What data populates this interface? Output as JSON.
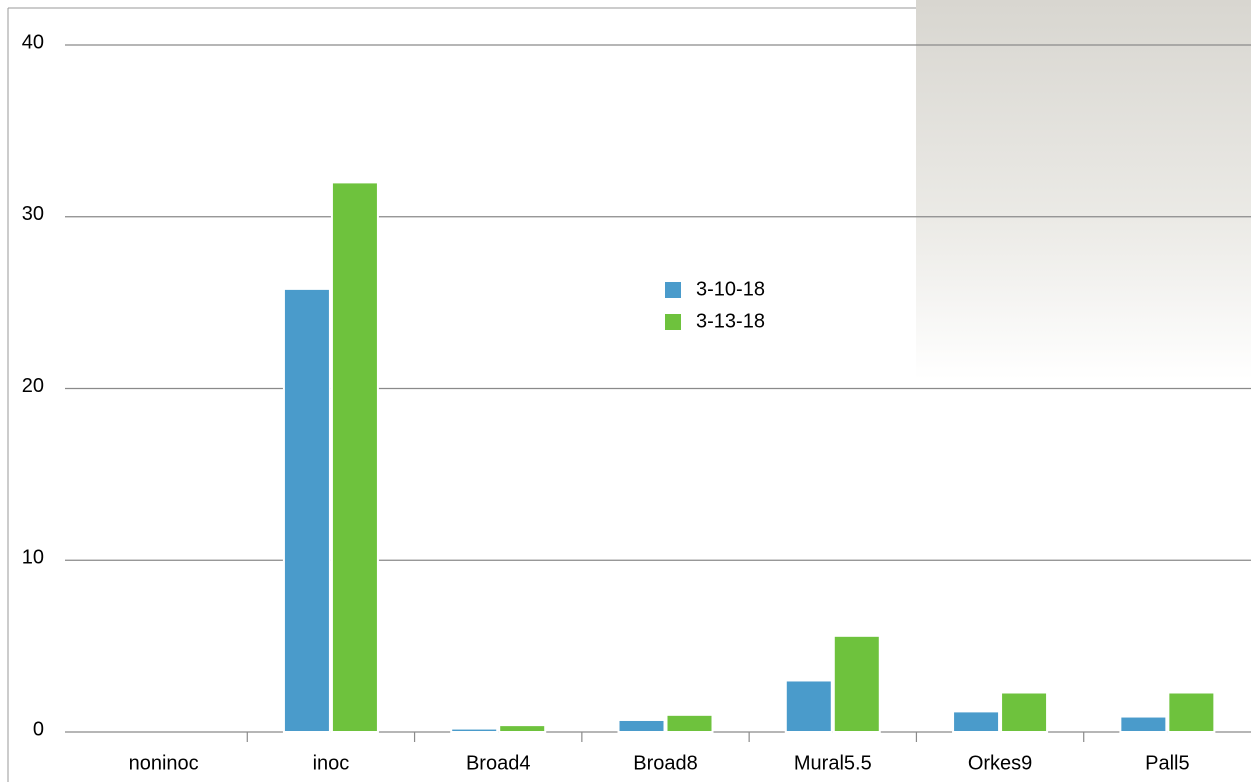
{
  "chart_data": {
    "type": "bar",
    "categories": [
      "noninoc",
      "inoc",
      "Broad4",
      "Broad8",
      "Mural5.5",
      "Orkes9",
      "Pall5"
    ],
    "series": [
      {
        "name": "3-10-18",
        "color": "#4a9bcb",
        "values": [
          0,
          25.8,
          0.2,
          0.7,
          3.0,
          1.2,
          0.9
        ]
      },
      {
        "name": "3-13-18",
        "color": "#6ec23d",
        "values": [
          0,
          32.0,
          0.4,
          1.0,
          5.6,
          2.3,
          2.3
        ]
      }
    ],
    "ylim": [
      0,
      40
    ],
    "yticks": [
      0,
      10,
      20,
      30,
      40
    ],
    "grid": true
  }
}
